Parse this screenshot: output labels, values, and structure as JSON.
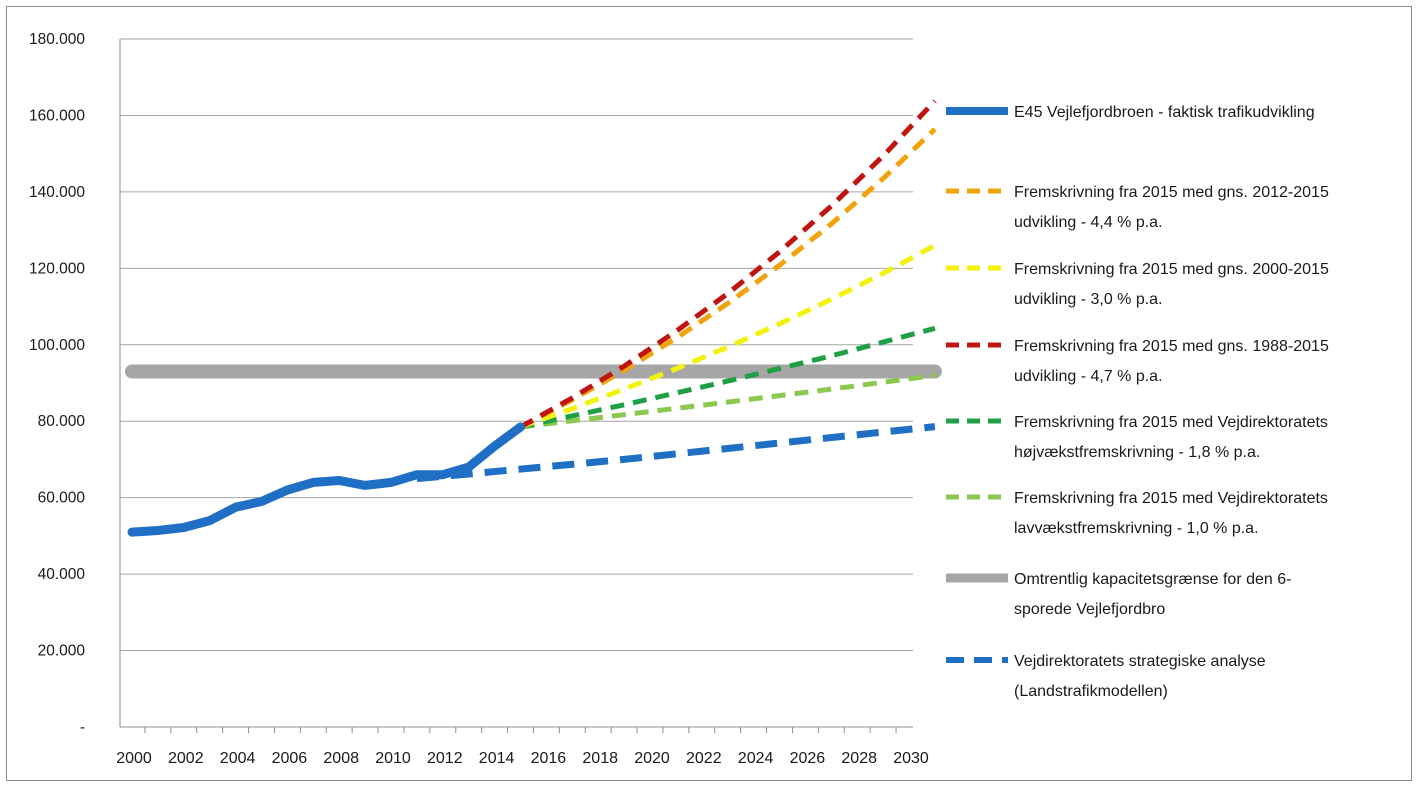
{
  "chart_data": {
    "type": "line",
    "title": "",
    "xlabel": "",
    "ylabel": "",
    "xlim": [
      2000,
      2031
    ],
    "ylim": [
      0,
      180000
    ],
    "grid": "horizontal",
    "legend_placement": "right",
    "y_ticks": [
      {
        "value": 0,
        "label": "-"
      },
      {
        "value": 20000,
        "label": "20.000"
      },
      {
        "value": 40000,
        "label": "40.000"
      },
      {
        "value": 60000,
        "label": "60.000"
      },
      {
        "value": 80000,
        "label": "80.000"
      },
      {
        "value": 100000,
        "label": "100.000"
      },
      {
        "value": 120000,
        "label": "120.000"
      },
      {
        "value": 140000,
        "label": "140.000"
      },
      {
        "value": 160000,
        "label": "160.000"
      },
      {
        "value": 180000,
        "label": "180.000"
      }
    ],
    "x_ticks": [
      "2000",
      "2002",
      "2004",
      "2006",
      "2008",
      "2010",
      "2012",
      "2014",
      "2016",
      "2018",
      "2020",
      "2022",
      "2024",
      "2026",
      "2028",
      "2030"
    ],
    "series": [
      {
        "name": "E45 Vejlefjordbroen - faktisk trafikudvikling",
        "color": "#1f6fc5",
        "style": "solid",
        "width": 9,
        "x": [
          2000,
          2001,
          2002,
          2003,
          2004,
          2005,
          2006,
          2007,
          2008,
          2009,
          2010,
          2011,
          2012,
          2013,
          2014,
          2015
        ],
        "y": [
          51000,
          51400,
          52200,
          54000,
          57500,
          59000,
          62000,
          64000,
          64500,
          63200,
          64000,
          66000,
          66000,
          68000,
          73500,
          78500
        ]
      },
      {
        "name_lines": [
          "Fremskrivning fra 2015 med gns. 2012-2015",
          "udvikling - 4,4 % p.a."
        ],
        "color": "#f0a30a",
        "style": "dashed",
        "width": 5,
        "x": [
          2015,
          2017,
          2019,
          2021,
          2023,
          2025,
          2027,
          2029,
          2031
        ],
        "y": [
          78500,
          85600,
          93300,
          101700,
          110800,
          120800,
          131600,
          143500,
          156400
        ]
      },
      {
        "name_lines": [
          "Fremskrivning fra 2015 med gns. 2000-2015",
          "udvikling - 3,0 % p.a."
        ],
        "color": "#f2f20a",
        "style": "dashed",
        "width": 5,
        "x": [
          2015,
          2017,
          2019,
          2021,
          2023,
          2025,
          2027,
          2029,
          2031
        ],
        "y": [
          78500,
          83300,
          88400,
          93700,
          99400,
          105500,
          111900,
          118700,
          126000
        ]
      },
      {
        "name_lines": [
          "Fremskrivning fra 2015 med gns. 1988-2015",
          "udvikling - 4,7 % p.a."
        ],
        "color": "#c0140f",
        "style": "dashed",
        "width": 5,
        "x": [
          2015,
          2017,
          2019,
          2021,
          2023,
          2025,
          2027,
          2029,
          2031
        ],
        "y": [
          78500,
          86100,
          94400,
          103500,
          113400,
          124300,
          136300,
          149400,
          163800
        ]
      },
      {
        "name_lines": [
          "Fremskrivning fra 2015 med Vejdirektoratets",
          "højvækstfremskrivning - 1,8 % p.a."
        ],
        "color": "#1fa046",
        "style": "dashed",
        "width": 5,
        "x": [
          2015,
          2019,
          2023,
          2027,
          2031
        ],
        "y": [
          78500,
          84300,
          90500,
          97100,
          104300
        ]
      },
      {
        "name_lines": [
          "Fremskrivning fra 2015 med Vejdirektoratets",
          "lavvækstfremskrivning - 1,0 % p.a."
        ],
        "color": "#8cc850",
        "style": "dashed",
        "width": 5,
        "x": [
          2015,
          2019,
          2023,
          2027,
          2031
        ],
        "y": [
          78500,
          81700,
          85000,
          88400,
          92000
        ]
      },
      {
        "name_lines": [
          "Omtrentlig kapacitetsgrænse for den 6-",
          "sporede Vejlefjordbro"
        ],
        "color": "#a6a6a6",
        "style": "solid",
        "width": 14,
        "x": [
          2000,
          2031
        ],
        "y": [
          93000,
          93000
        ]
      },
      {
        "name_lines": [
          "Vejdirektoratets strategiske analyse",
          "(Landstrafikmodellen)"
        ],
        "color": "#1f6fc5",
        "style": "longdash",
        "width": 7,
        "x": [
          2011,
          2013,
          2019,
          2031
        ],
        "y": [
          65000,
          66200,
          70000,
          78600
        ]
      }
    ]
  }
}
